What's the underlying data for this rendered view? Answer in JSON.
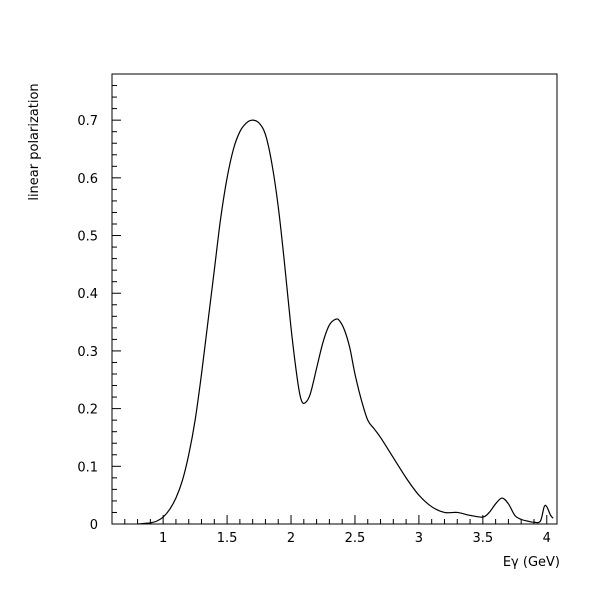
{
  "chart_data": {
    "type": "line",
    "title": "",
    "xlabel": "Eγ (GeV)",
    "ylabel": "linear polarization",
    "xlim": [
      0.6,
      4.08
    ],
    "ylim": [
      0,
      0.78
    ],
    "grid": false,
    "legend": "none",
    "x_ticks": [
      1,
      1.5,
      2,
      2.5,
      3,
      3.5,
      4
    ],
    "x_tick_labels": [
      "1",
      "1.5",
      "2",
      "2.5",
      "3",
      "3.5",
      "4"
    ],
    "y_ticks": [
      0,
      0.1,
      0.2,
      0.3,
      0.4,
      0.5,
      0.6,
      0.7
    ],
    "y_tick_labels": [
      "0",
      "0.1",
      "0.2",
      "0.3",
      "0.4",
      "0.5",
      "0.6",
      "0.7"
    ],
    "line_color": "#000000",
    "series": [
      {
        "x": [
          0.8,
          0.9,
          0.95,
          1.0,
          1.05,
          1.1,
          1.15,
          1.2,
          1.25,
          1.3,
          1.35,
          1.4,
          1.45,
          1.5,
          1.55,
          1.6,
          1.65,
          1.7,
          1.75,
          1.8,
          1.85,
          1.9,
          1.95,
          2.0,
          2.05,
          2.08,
          2.11,
          2.15,
          2.2,
          2.25,
          2.3,
          2.35,
          2.38,
          2.42,
          2.46,
          2.5,
          2.55,
          2.6,
          2.65,
          2.7,
          2.8,
          2.9,
          3.0,
          3.1,
          3.2,
          3.3,
          3.4,
          3.5,
          3.55,
          3.6,
          3.65,
          3.7,
          3.75,
          3.8,
          3.85,
          3.9,
          3.95,
          3.98,
          4.0,
          4.03,
          4.05
        ],
        "y": [
          0.0,
          0.002,
          0.005,
          0.012,
          0.025,
          0.045,
          0.075,
          0.12,
          0.18,
          0.26,
          0.35,
          0.44,
          0.53,
          0.6,
          0.65,
          0.68,
          0.695,
          0.7,
          0.695,
          0.675,
          0.625,
          0.55,
          0.45,
          0.34,
          0.25,
          0.215,
          0.21,
          0.225,
          0.27,
          0.315,
          0.345,
          0.355,
          0.352,
          0.335,
          0.305,
          0.26,
          0.215,
          0.18,
          0.165,
          0.15,
          0.115,
          0.08,
          0.05,
          0.03,
          0.02,
          0.02,
          0.015,
          0.012,
          0.02,
          0.035,
          0.045,
          0.035,
          0.015,
          0.008,
          0.005,
          0.003,
          0.005,
          0.03,
          0.03,
          0.015,
          0.01
        ]
      }
    ]
  }
}
